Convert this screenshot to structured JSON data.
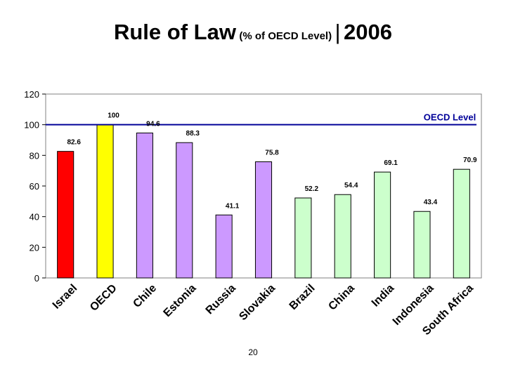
{
  "title": {
    "main": "Rule of Law",
    "sub": "(% of OECD Level)",
    "separator": "|",
    "year": "2006"
  },
  "page_number": "20",
  "chart_data": {
    "type": "bar",
    "categories": [
      "Israel",
      "OECD",
      "Chile",
      "Estonia",
      "Russia",
      "Slovakia",
      "Brazil",
      "China",
      "India",
      "Indonesia",
      "South Africa"
    ],
    "values": [
      82.6,
      100,
      94.6,
      88.3,
      41.1,
      75.8,
      52.2,
      54.4,
      69.1,
      43.4,
      70.9
    ],
    "data_labels": [
      "82.6",
      "100",
      "94.6",
      "88.3",
      "41.1",
      "75.8",
      "52.2",
      "54.4",
      "69.1",
      "43.4",
      "70.9"
    ],
    "bar_colors": [
      "#ff0000",
      "#ffff00",
      "#cc99ff",
      "#cc99ff",
      "#cc99ff",
      "#cc99ff",
      "#ccffcc",
      "#ccffcc",
      "#ccffcc",
      "#ccffcc",
      "#ccffcc"
    ],
    "ylim": [
      0,
      120
    ],
    "yticks": [
      0,
      20,
      40,
      60,
      80,
      100,
      120
    ],
    "reference_line": {
      "value": 100,
      "label": "OECD Level",
      "color": "#000099"
    },
    "grid": false,
    "plot_border": true
  }
}
